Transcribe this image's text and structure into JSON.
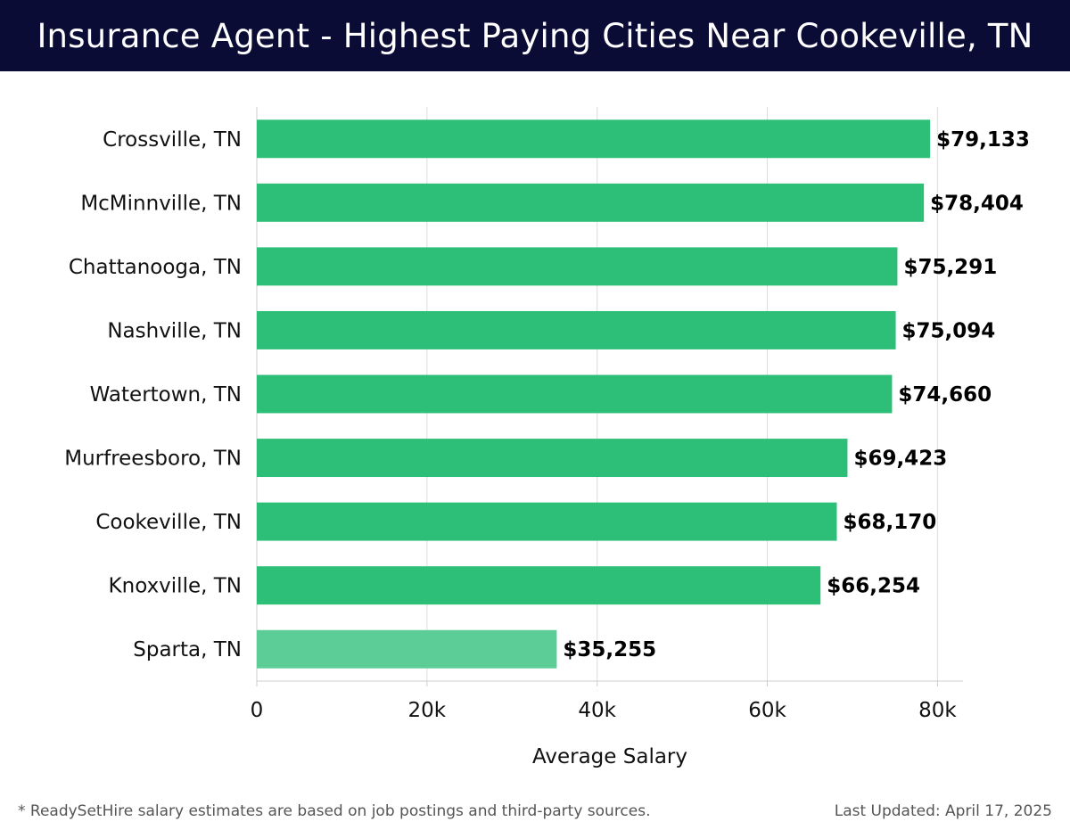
{
  "header": {
    "title": "Insurance Agent - Highest Paying Cities Near Cookeville, TN"
  },
  "chart_data": {
    "type": "bar",
    "orientation": "horizontal",
    "categories": [
      "Crossville, TN",
      "McMinnville, TN",
      "Chattanooga, TN",
      "Nashville, TN",
      "Watertown, TN",
      "Murfreesboro, TN",
      "Cookeville, TN",
      "Knoxville, TN",
      "Sparta, TN"
    ],
    "values": [
      79133,
      78404,
      75291,
      75094,
      74660,
      69423,
      68170,
      66254,
      35255
    ],
    "value_labels": [
      "$79,133",
      "$78,404",
      "$75,291",
      "$75,094",
      "$74,660",
      "$69,423",
      "$68,170",
      "$66,254",
      "$35,255"
    ],
    "xlabel": "Average Salary",
    "ylabel": "",
    "xlim": [
      0,
      83000
    ],
    "xticks": [
      0,
      20000,
      40000,
      60000,
      80000
    ],
    "xtick_labels": [
      "0",
      "20k",
      "40k",
      "60k",
      "80k"
    ],
    "grid": "vertical",
    "colors": {
      "bar": "#2dbf78",
      "bar_highlight": "#5ccd96",
      "grid": "#dddddd",
      "axis": "#cccccc"
    },
    "highlight_category": "Sparta, TN"
  },
  "footer": {
    "note": "* ReadySetHire salary estimates are based on job postings and third-party sources.",
    "updated": "Last Updated: April 17, 2025"
  }
}
